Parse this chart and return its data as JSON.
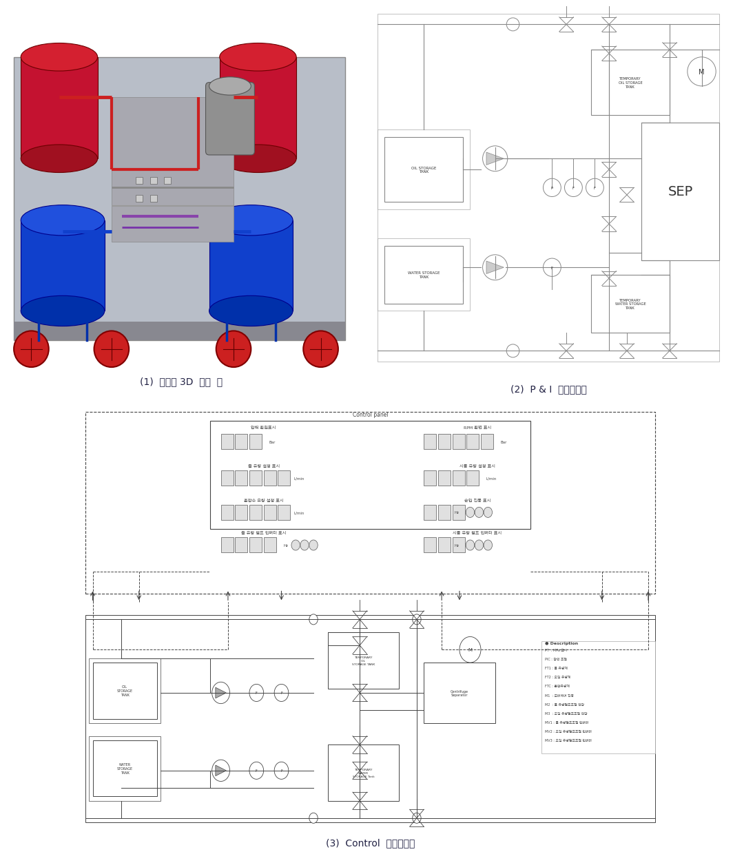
{
  "background_color": "#ffffff",
  "fig_width": 10.77,
  "fig_height": 12.54,
  "dpi": 100,
  "captions": {
    "fig1": "(1)  시험기 3D  설계  안",
    "fig2": "(2)  P & I  다이어그램",
    "fig3": "(3)  Control  다이어그램"
  },
  "caption_fontsize": 10
}
